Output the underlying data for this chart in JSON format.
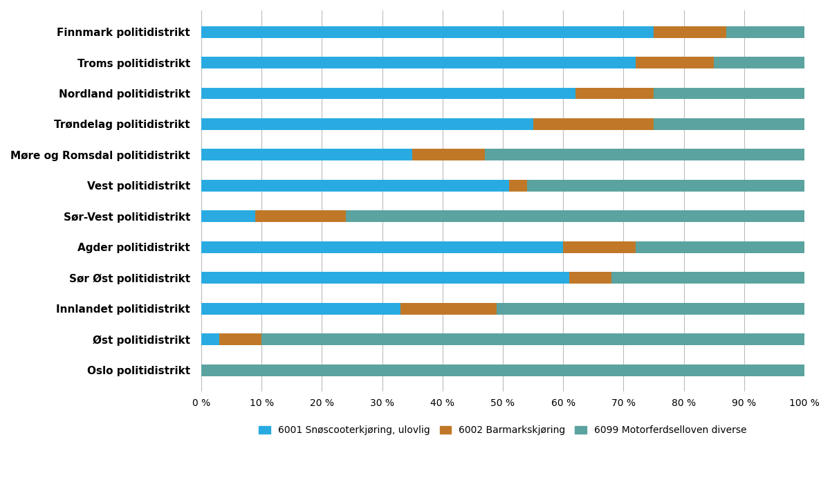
{
  "districts": [
    "Oslo politidistrikt",
    "Øst politidistrikt",
    "Innlandet politidistrikt",
    "Sør Øst politidistrikt",
    "Agder politidistrikt",
    "Sør-Vest politidistrikt",
    "Vest politidistrikt",
    "Møre og Romsdal politidistrikt",
    "Trøndelag politidistrikt",
    "Nordland politidistrikt",
    "Troms politidistrikt",
    "Finnmark politidistrikt"
  ],
  "blue_vals": [
    0.0,
    3.0,
    33.0,
    61.0,
    60.0,
    9.0,
    51.0,
    35.0,
    55.0,
    62.0,
    72.0,
    75.0
  ],
  "orange_vals": [
    0.0,
    7.0,
    16.0,
    7.0,
    12.0,
    15.0,
    3.0,
    12.0,
    20.0,
    13.0,
    13.0,
    12.0
  ],
  "teal_vals": [
    100.0,
    90.0,
    51.0,
    32.0,
    28.0,
    76.0,
    46.0,
    53.0,
    25.0,
    25.0,
    15.0,
    13.0
  ],
  "blue_color": "#29ABE2",
  "orange_color": "#C07828",
  "teal_color": "#5BA3A0",
  "legend_labels": [
    "6001 Snøscooterkjøring, ulovlig",
    "6002 Barmarkskjøring",
    "6099 Motorferdselloven diverse"
  ],
  "xlim": [
    0,
    100
  ],
  "xtick_vals": [
    0,
    10,
    20,
    30,
    40,
    50,
    60,
    70,
    80,
    90,
    100
  ],
  "xtick_labels": [
    "0 %",
    "10 %",
    "20 %",
    "30 %",
    "40 %",
    "50 %",
    "60 %",
    "70 %",
    "80 %",
    "90 %",
    "100 %"
  ],
  "bar_height": 0.38,
  "grid_color": "#BBBBBB",
  "background_color": "#FFFFFF",
  "label_fontsize": 11,
  "tick_fontsize": 10,
  "legend_fontsize": 10
}
